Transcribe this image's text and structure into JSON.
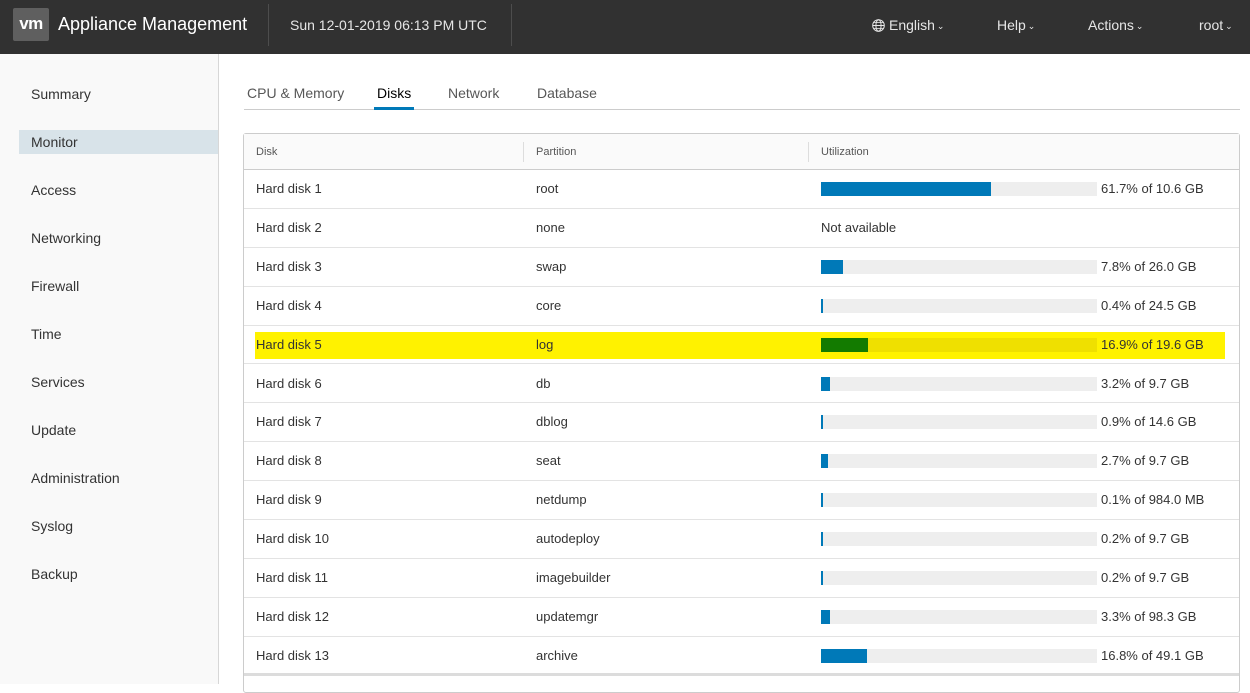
{
  "header": {
    "logo": "vm",
    "title": "Appliance Management",
    "datetime": "Sun 12-01-2019 06:13 PM UTC",
    "menus": {
      "language": "English",
      "help": "Help",
      "actions": "Actions",
      "user": "root"
    },
    "icons": {
      "language": "globe-icon",
      "dropdown": "chevron-down-icon"
    },
    "colors": {
      "background": "#313131"
    }
  },
  "sidebar": {
    "items": [
      {
        "label": "Summary",
        "active": false
      },
      {
        "label": "Monitor",
        "active": true
      },
      {
        "label": "Access",
        "active": false
      },
      {
        "label": "Networking",
        "active": false
      },
      {
        "label": "Firewall",
        "active": false
      },
      {
        "label": "Time",
        "active": false
      },
      {
        "label": "Services",
        "active": false
      },
      {
        "label": "Update",
        "active": false
      },
      {
        "label": "Administration",
        "active": false
      },
      {
        "label": "Syslog",
        "active": false
      },
      {
        "label": "Backup",
        "active": false
      }
    ]
  },
  "tabs": [
    {
      "label": "CPU & Memory",
      "active": false
    },
    {
      "label": "Disks",
      "active": true
    },
    {
      "label": "Network",
      "active": false
    },
    {
      "label": "Database",
      "active": false
    }
  ],
  "table": {
    "columns": [
      "Disk",
      "Partition",
      "Utilization"
    ],
    "rows": [
      {
        "disk": "Hard disk 1",
        "partition": "root",
        "utilization": 61.7,
        "text": "61.7% of 10.6 GB",
        "available": true,
        "highlight": false
      },
      {
        "disk": "Hard disk 2",
        "partition": "none",
        "utilization": null,
        "text": "Not available",
        "available": false,
        "highlight": false
      },
      {
        "disk": "Hard disk 3",
        "partition": "swap",
        "utilization": 7.8,
        "text": "7.8% of 26.0 GB",
        "available": true,
        "highlight": false
      },
      {
        "disk": "Hard disk 4",
        "partition": "core",
        "utilization": 0.4,
        "text": "0.4% of 24.5 GB",
        "available": true,
        "highlight": false
      },
      {
        "disk": "Hard disk 5",
        "partition": "log",
        "utilization": 16.9,
        "text": "16.9% of 19.6 GB",
        "available": true,
        "highlight": true
      },
      {
        "disk": "Hard disk 6",
        "partition": "db",
        "utilization": 3.2,
        "text": "3.2% of 9.7 GB",
        "available": true,
        "highlight": false
      },
      {
        "disk": "Hard disk 7",
        "partition": "dblog",
        "utilization": 0.9,
        "text": "0.9% of 14.6 GB",
        "available": true,
        "highlight": false
      },
      {
        "disk": "Hard disk 8",
        "partition": "seat",
        "utilization": 2.7,
        "text": "2.7% of 9.7 GB",
        "available": true,
        "highlight": false
      },
      {
        "disk": "Hard disk 9",
        "partition": "netdump",
        "utilization": 0.1,
        "text": "0.1% of 984.0 MB",
        "available": true,
        "highlight": false
      },
      {
        "disk": "Hard disk 10",
        "partition": "autodeploy",
        "utilization": 0.2,
        "text": "0.2% of 9.7 GB",
        "available": true,
        "highlight": false
      },
      {
        "disk": "Hard disk 11",
        "partition": "imagebuilder",
        "utilization": 0.2,
        "text": "0.2% of 9.7 GB",
        "available": true,
        "highlight": false
      },
      {
        "disk": "Hard disk 12",
        "partition": "updatemgr",
        "utilization": 3.3,
        "text": "3.3% of 98.3 GB",
        "available": true,
        "highlight": false
      },
      {
        "disk": "Hard disk 13",
        "partition": "archive",
        "utilization": 16.8,
        "text": "16.8% of 49.1 GB",
        "available": true,
        "highlight": false
      }
    ],
    "colors": {
      "bar_fill": "#0079b8",
      "bar_track": "#eeeeee",
      "highlight_row": "#fff200",
      "highlight_bar_fill": "#137b00"
    }
  }
}
